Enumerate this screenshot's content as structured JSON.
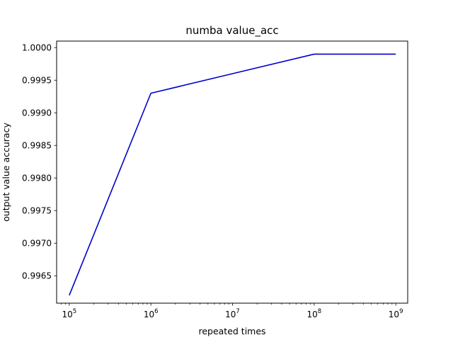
{
  "chart_data": {
    "type": "line",
    "title": "numba value_acc",
    "xlabel": "repeated times",
    "ylabel": "output value accuracy",
    "xscale": "log",
    "xlim": [
      70000,
      1400000000
    ],
    "ylim": [
      0.99608,
      1.0001
    ],
    "grid": false,
    "x_ticks": [
      {
        "base": "10",
        "exp": "5",
        "value": 100000
      },
      {
        "base": "10",
        "exp": "6",
        "value": 1000000
      },
      {
        "base": "10",
        "exp": "7",
        "value": 10000000
      },
      {
        "base": "10",
        "exp": "8",
        "value": 100000000
      },
      {
        "base": "10",
        "exp": "9",
        "value": 1000000000
      }
    ],
    "y_ticks": [
      {
        "label": "0.9965",
        "value": 0.9965
      },
      {
        "label": "0.9970",
        "value": 0.997
      },
      {
        "label": "0.9975",
        "value": 0.9975
      },
      {
        "label": "0.9980",
        "value": 0.998
      },
      {
        "label": "0.9985",
        "value": 0.9985
      },
      {
        "label": "0.9990",
        "value": 0.999
      },
      {
        "label": "0.9995",
        "value": 0.9995
      },
      {
        "label": "1.0000",
        "value": 1.0
      }
    ],
    "series": [
      {
        "color": "#0000cc",
        "x": [
          100000,
          1000000,
          10000000,
          100000000,
          1000000000
        ],
        "y": [
          0.9962,
          0.9993,
          0.9996,
          0.9999,
          0.9999
        ]
      }
    ]
  }
}
